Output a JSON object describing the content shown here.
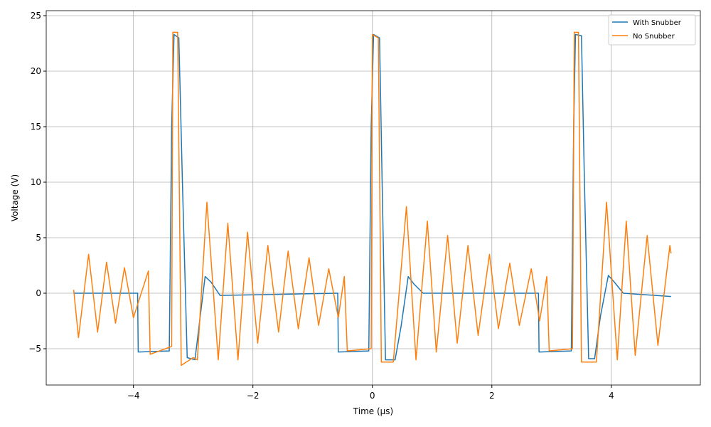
{
  "chart_data": {
    "type": "line",
    "xlabel": "Time (μs)",
    "ylabel": "Voltage (V)",
    "xlim": [
      -5.46,
      5.49
    ],
    "ylim": [
      -8.27,
      25.45
    ],
    "xticks": [
      {
        "value": -4,
        "label": "−4"
      },
      {
        "value": -2,
        "label": "−2"
      },
      0,
      2,
      4
    ],
    "yticks": [
      {
        "value": -5,
        "label": "−5"
      },
      0,
      5,
      10,
      15,
      20,
      25
    ],
    "grid": true,
    "legend": "upper right",
    "series": [
      {
        "name": "With Snubber",
        "color": "#1f77b4",
        "x": [
          -5,
          -3.93,
          -3.92,
          -3.4,
          -3.36,
          -3.32,
          -3.24,
          -3.18,
          -3.1,
          -2.97,
          -2.88,
          -2.8,
          -2.7,
          -2.55,
          -0.58,
          -0.57,
          -0.06,
          -0.02,
          0.02,
          0.12,
          0.17,
          0.22,
          0.38,
          0.48,
          0.6,
          0.7,
          0.85,
          2.78,
          2.79,
          3.33,
          3.37,
          3.4,
          3.5,
          3.55,
          3.62,
          3.72,
          3.82,
          3.95,
          4.05,
          4.2,
          5
        ],
        "values": [
          0,
          0,
          -5.3,
          -5.2,
          15,
          23.3,
          23,
          10,
          -5.8,
          -6,
          -2,
          1.5,
          1,
          -0.2,
          0,
          -5.3,
          -5.2,
          15,
          23.3,
          23,
          8,
          -6,
          -6,
          -3,
          1.5,
          0.8,
          0,
          0,
          -5.3,
          -5.2,
          15,
          23.3,
          23.2,
          10,
          -5.9,
          -5.9,
          -2,
          1.6,
          1,
          0,
          -0.3
        ]
      },
      {
        "name": "No Snubber",
        "color": "#ff7f0e",
        "x": [
          -5,
          -4.92,
          -4.75,
          -4.6,
          -4.45,
          -4.3,
          -4.15,
          -4.0,
          -3.75,
          -3.72,
          -3.36,
          -3.34,
          -3.26,
          -3.2,
          -3.0,
          -2.93,
          -2.77,
          -2.58,
          -2.42,
          -2.25,
          -2.09,
          -1.92,
          -1.75,
          -1.57,
          -1.41,
          -1.24,
          -1.06,
          -0.9,
          -0.73,
          -0.57,
          -0.47,
          -0.42,
          -0.02,
          0.0,
          0.1,
          0.15,
          0.35,
          0.57,
          0.73,
          0.92,
          1.07,
          1.26,
          1.42,
          1.6,
          1.77,
          1.96,
          2.11,
          2.3,
          2.46,
          2.66,
          2.8,
          2.92,
          2.96,
          3.35,
          3.38,
          3.45,
          3.5,
          3.75,
          3.92,
          4.1,
          4.25,
          4.4,
          4.6,
          4.78,
          4.98,
          5.0
        ],
        "values": [
          0.3,
          -4,
          3.5,
          -3.5,
          2.8,
          -2.7,
          2.3,
          -2.2,
          2.0,
          -5.5,
          -4.8,
          23.5,
          23.5,
          -6.5,
          -5.8,
          -6,
          8.2,
          -6,
          6.3,
          -6,
          5.5,
          -4.5,
          4.3,
          -3.5,
          3.8,
          -3.2,
          3.2,
          -2.9,
          2.2,
          -2.2,
          1.5,
          -5.2,
          -5,
          23.3,
          23,
          -6.2,
          -6.2,
          7.8,
          -6,
          6.5,
          -5.3,
          5.2,
          -4.5,
          4.3,
          -3.8,
          3.5,
          -3.2,
          2.7,
          -2.9,
          2.2,
          -2.5,
          1.5,
          -5.2,
          -5,
          23.5,
          23.5,
          -6.2,
          -6.2,
          8.2,
          -6,
          6.5,
          -5.6,
          5.2,
          -4.7,
          4.3,
          3.6
        ]
      }
    ]
  }
}
